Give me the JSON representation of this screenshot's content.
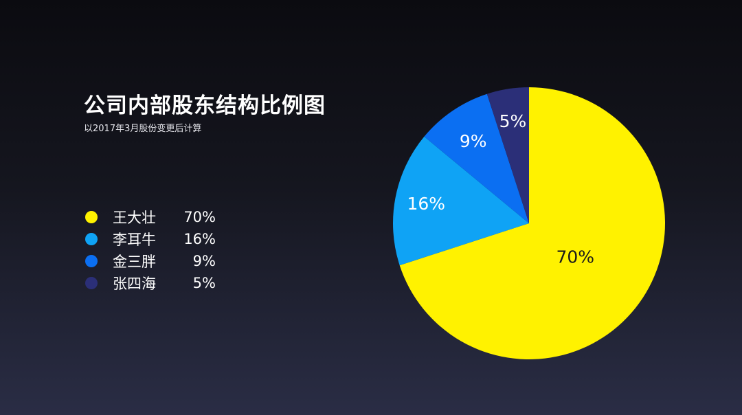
{
  "chart_data": {
    "type": "pie",
    "title": "公司内部股东结构比例图",
    "subtitle": "以2017年3月股份变更后计算",
    "slices": [
      {
        "label": "王大壮",
        "value": 70,
        "display": "70%",
        "color": "#fff200",
        "label_color": "#1a1a1a"
      },
      {
        "label": "李耳牛",
        "value": 16,
        "display": "16%",
        "color": "#0fa3f5",
        "label_color": "#ffffff"
      },
      {
        "label": "金三胖",
        "value": 9,
        "display": "9%",
        "color": "#0b6ff2",
        "label_color": "#ffffff"
      },
      {
        "label": "张四海",
        "value": 5,
        "display": "5%",
        "color": "#2b2f78",
        "label_color": "#ffffff"
      }
    ],
    "legend_position": "left"
  }
}
